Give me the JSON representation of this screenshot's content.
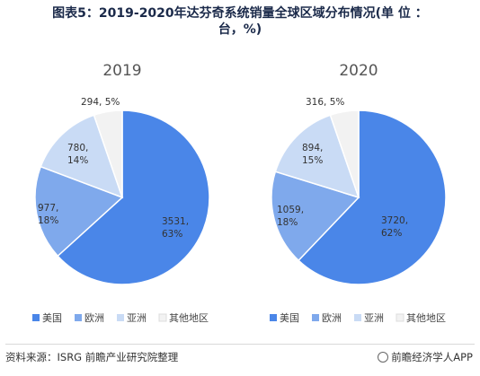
{
  "title_line1": "图表5：2019-2020年达芬奇系统销量全球区域分布情况(单 位 ：",
  "title_line2": "台，%)",
  "source": "资料来源：ISRG 前瞻产业研究院整理",
  "brand": "前瞻经济学人APP",
  "chart_data": [
    {
      "type": "pie",
      "title": "2019",
      "categories": [
        "美国",
        "欧洲",
        "亚洲",
        "其他地区"
      ],
      "values": [
        3531,
        977,
        780,
        294
      ],
      "percents": [
        63,
        18,
        14,
        5
      ],
      "colors": [
        "#4a86e8",
        "#7fa9ec",
        "#c9dbf5",
        "#f2f2f2"
      ],
      "legend": "bottom"
    },
    {
      "type": "pie",
      "title": "2020",
      "categories": [
        "美国",
        "欧洲",
        "亚洲",
        "其他地区"
      ],
      "values": [
        3720,
        1059,
        894,
        316
      ],
      "percents": [
        62,
        18,
        15,
        5
      ],
      "colors": [
        "#4a86e8",
        "#7fa9ec",
        "#c9dbf5",
        "#f2f2f2"
      ],
      "legend": "bottom"
    }
  ]
}
